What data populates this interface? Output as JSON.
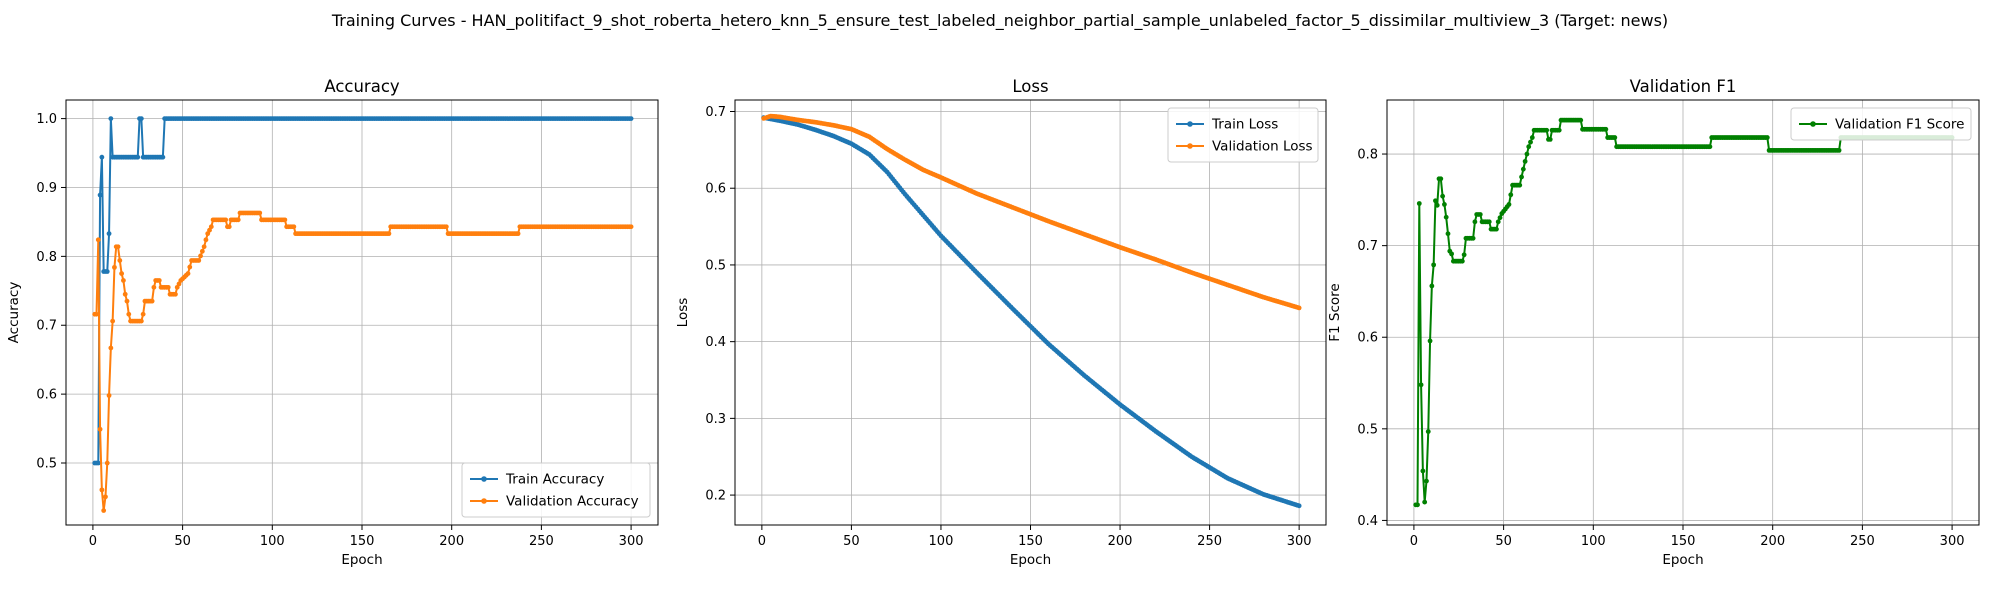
{
  "figure_title": "Training Curves - HAN_politifact_9_shot_roberta_hetero_knn_5_ensure_test_labeled_neighbor_partial_sample_unlabeled_factor_5_dissimilar_multiview_3 (Target: news)",
  "colors": {
    "blue": "#1f77b4",
    "orange": "#ff7f0e",
    "green": "#008000",
    "grid": "#b0b0b0",
    "axis": "#000000"
  },
  "chart_data": [
    {
      "type": "line",
      "title": "Accuracy",
      "xlabel": "Epoch",
      "ylabel": "Accuracy",
      "xlim": [
        -15,
        315
      ],
      "ylim": [
        0.41,
        1.027
      ],
      "xticks": [
        0,
        50,
        100,
        150,
        200,
        250,
        300
      ],
      "yticks": [
        0.5,
        0.6,
        0.7,
        0.8,
        0.9,
        1.0
      ],
      "ytick_labels": [
        "0.5",
        "0.6",
        "0.7",
        "0.8",
        "0.9",
        "1.0"
      ],
      "grid": true,
      "legend_position": "lower right",
      "series": [
        {
          "name": "Train Accuracy",
          "color": "#1f77b4",
          "points": [
            [
              1,
              0.5
            ],
            [
              2,
              0.5
            ],
            [
              3,
              0.5
            ],
            [
              4,
              0.889
            ],
            [
              5,
              0.944
            ],
            [
              6,
              0.778
            ],
            [
              7,
              0.778
            ],
            [
              8,
              0.778
            ],
            [
              9,
              0.833
            ],
            [
              10,
              1.0
            ],
            [
              11,
              0.944
            ],
            [
              12,
              0.944
            ],
            [
              25,
              0.944
            ],
            [
              26,
              1.0
            ],
            [
              27,
              1.0
            ],
            [
              28,
              0.944
            ],
            [
              29,
              0.944
            ],
            [
              39,
              0.944
            ],
            [
              40,
              1.0
            ],
            [
              300,
              1.0
            ]
          ]
        },
        {
          "name": "Validation Accuracy",
          "color": "#ff7f0e",
          "points": [
            [
              1,
              0.716
            ],
            [
              2,
              0.716
            ],
            [
              3,
              0.824
            ],
            [
              4,
              0.549
            ],
            [
              5,
              0.461
            ],
            [
              6,
              0.431
            ],
            [
              7,
              0.451
            ],
            [
              8,
              0.5
            ],
            [
              9,
              0.598
            ],
            [
              10,
              0.667
            ],
            [
              11,
              0.706
            ],
            [
              12,
              0.784
            ],
            [
              13,
              0.814
            ],
            [
              14,
              0.814
            ],
            [
              15,
              0.794
            ],
            [
              16,
              0.775
            ],
            [
              17,
              0.765
            ],
            [
              18,
              0.745
            ],
            [
              19,
              0.735
            ],
            [
              20,
              0.716
            ],
            [
              21,
              0.706
            ],
            [
              27,
              0.706
            ],
            [
              28,
              0.716
            ],
            [
              29,
              0.735
            ],
            [
              33,
              0.735
            ],
            [
              34,
              0.755
            ],
            [
              35,
              0.765
            ],
            [
              37,
              0.765
            ],
            [
              38,
              0.755
            ],
            [
              42,
              0.755
            ],
            [
              43,
              0.745
            ],
            [
              46,
              0.745
            ],
            [
              47,
              0.755
            ],
            [
              49,
              0.765
            ],
            [
              53,
              0.775
            ],
            [
              55,
              0.794
            ],
            [
              59,
              0.794
            ],
            [
              62,
              0.814
            ],
            [
              63,
              0.824
            ],
            [
              64,
              0.833
            ],
            [
              66,
              0.843
            ],
            [
              67,
              0.853
            ],
            [
              74,
              0.853
            ],
            [
              75,
              0.843
            ],
            [
              76,
              0.843
            ],
            [
              77,
              0.853
            ],
            [
              81,
              0.853
            ],
            [
              82,
              0.863
            ],
            [
              93,
              0.863
            ],
            [
              94,
              0.853
            ],
            [
              107,
              0.853
            ],
            [
              108,
              0.843
            ],
            [
              112,
              0.843
            ],
            [
              113,
              0.833
            ],
            [
              165,
              0.833
            ],
            [
              166,
              0.843
            ],
            [
              197,
              0.843
            ],
            [
              198,
              0.833
            ],
            [
              237,
              0.833
            ],
            [
              238,
              0.843
            ],
            [
              300,
              0.843
            ]
          ]
        }
      ]
    },
    {
      "type": "line",
      "title": "Loss",
      "xlabel": "Epoch",
      "ylabel": "Loss",
      "xlim": [
        -15,
        315
      ],
      "ylim": [
        0.161,
        0.715
      ],
      "xticks": [
        0,
        50,
        100,
        150,
        200,
        250,
        300
      ],
      "yticks": [
        0.2,
        0.3,
        0.4,
        0.5,
        0.6,
        0.7
      ],
      "ytick_labels": [
        "0.2",
        "0.3",
        "0.4",
        "0.5",
        "0.6",
        "0.7"
      ],
      "grid": true,
      "legend_position": "upper right",
      "series": [
        {
          "name": "Train Loss",
          "color": "#1f77b4",
          "points": [
            [
              1,
              0.692
            ],
            [
              10,
              0.688
            ],
            [
              20,
              0.683
            ],
            [
              30,
              0.676
            ],
            [
              40,
              0.668
            ],
            [
              50,
              0.658
            ],
            [
              60,
              0.644
            ],
            [
              70,
              0.621
            ],
            [
              80,
              0.592
            ],
            [
              90,
              0.565
            ],
            [
              100,
              0.538
            ],
            [
              120,
              0.49
            ],
            [
              140,
              0.443
            ],
            [
              160,
              0.397
            ],
            [
              180,
              0.356
            ],
            [
              200,
              0.318
            ],
            [
              220,
              0.283
            ],
            [
              240,
              0.25
            ],
            [
              260,
              0.222
            ],
            [
              280,
              0.201
            ],
            [
              300,
              0.186
            ]
          ]
        },
        {
          "name": "Validation Loss",
          "color": "#ff7f0e",
          "points": [
            [
              1,
              0.691
            ],
            [
              5,
              0.694
            ],
            [
              10,
              0.693
            ],
            [
              20,
              0.689
            ],
            [
              30,
              0.686
            ],
            [
              40,
              0.682
            ],
            [
              50,
              0.677
            ],
            [
              60,
              0.667
            ],
            [
              70,
              0.651
            ],
            [
              80,
              0.637
            ],
            [
              90,
              0.624
            ],
            [
              100,
              0.614
            ],
            [
              120,
              0.593
            ],
            [
              140,
              0.575
            ],
            [
              160,
              0.557
            ],
            [
              180,
              0.54
            ],
            [
              200,
              0.523
            ],
            [
              220,
              0.507
            ],
            [
              240,
              0.49
            ],
            [
              260,
              0.474
            ],
            [
              280,
              0.458
            ],
            [
              300,
              0.444
            ]
          ]
        }
      ]
    },
    {
      "type": "line",
      "title": "Validation F1",
      "xlabel": "Epoch",
      "ylabel": "F1 Score",
      "xlim": [
        -15,
        315
      ],
      "ylim": [
        0.395,
        0.859
      ],
      "xticks": [
        0,
        50,
        100,
        150,
        200,
        250,
        300
      ],
      "yticks": [
        0.4,
        0.5,
        0.6,
        0.7,
        0.8
      ],
      "ytick_labels": [
        "0.4",
        "0.5",
        "0.6",
        "0.7",
        "0.8"
      ],
      "grid": true,
      "legend_position": "upper right",
      "series": [
        {
          "name": "Validation F1 Score",
          "color": "#008000",
          "points": [
            [
              1,
              0.417
            ],
            [
              2,
              0.417
            ],
            [
              3,
              0.746
            ],
            [
              4,
              0.548
            ],
            [
              5,
              0.454
            ],
            [
              6,
              0.42
            ],
            [
              7,
              0.443
            ],
            [
              8,
              0.497
            ],
            [
              9,
              0.596
            ],
            [
              10,
              0.656
            ],
            [
              11,
              0.679
            ],
            [
              12,
              0.749
            ],
            [
              13,
              0.744
            ],
            [
              14,
              0.773
            ],
            [
              15,
              0.773
            ],
            [
              16,
              0.754
            ],
            [
              17,
              0.745
            ],
            [
              18,
              0.731
            ],
            [
              19,
              0.713
            ],
            [
              20,
              0.694
            ],
            [
              21,
              0.691
            ],
            [
              22,
              0.683
            ],
            [
              27,
              0.683
            ],
            [
              28,
              0.69
            ],
            [
              29,
              0.708
            ],
            [
              33,
              0.708
            ],
            [
              34,
              0.726
            ],
            [
              35,
              0.734
            ],
            [
              37,
              0.734
            ],
            [
              38,
              0.726
            ],
            [
              42,
              0.726
            ],
            [
              43,
              0.718
            ],
            [
              46,
              0.718
            ],
            [
              47,
              0.726
            ],
            [
              49,
              0.735
            ],
            [
              53,
              0.745
            ],
            [
              55,
              0.766
            ],
            [
              59,
              0.766
            ],
            [
              60,
              0.775
            ],
            [
              62,
              0.792
            ],
            [
              63,
              0.8
            ],
            [
              64,
              0.808
            ],
            [
              66,
              0.818
            ],
            [
              67,
              0.826
            ],
            [
              74,
              0.826
            ],
            [
              75,
              0.816
            ],
            [
              76,
              0.816
            ],
            [
              77,
              0.826
            ],
            [
              81,
              0.826
            ],
            [
              82,
              0.837
            ],
            [
              93,
              0.837
            ],
            [
              94,
              0.827
            ],
            [
              107,
              0.827
            ],
            [
              108,
              0.818
            ],
            [
              112,
              0.818
            ],
            [
              113,
              0.808
            ],
            [
              165,
              0.808
            ],
            [
              166,
              0.818
            ],
            [
              197,
              0.818
            ],
            [
              198,
              0.804
            ],
            [
              237,
              0.804
            ],
            [
              238,
              0.818
            ],
            [
              300,
              0.818
            ]
          ]
        }
      ]
    }
  ]
}
